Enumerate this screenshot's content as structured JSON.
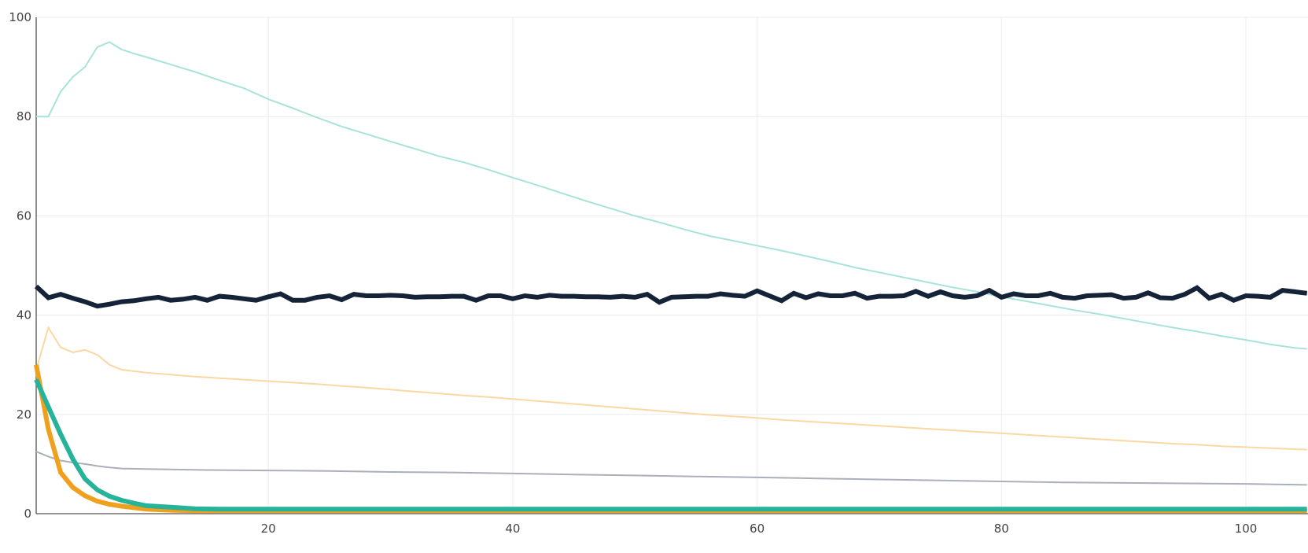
{
  "chart_data": {
    "type": "line",
    "title": "",
    "xlabel": "",
    "ylabel": "",
    "xlim": [
      1,
      105
    ],
    "ylim": [
      0,
      100
    ],
    "x_ticks": [
      20,
      40,
      60,
      80,
      100
    ],
    "y_ticks": [
      0,
      20,
      40,
      60,
      80,
      100
    ],
    "x_tick_labels": [
      "20",
      "40",
      "60",
      "80",
      "100"
    ],
    "y_tick_labels": [
      "0",
      "20",
      "40",
      "60",
      "80",
      "100"
    ],
    "grid": true,
    "legend": "none",
    "series": [
      {
        "color": "#a8e3da",
        "stroke": "thin",
        "points": [
          [
            1,
            80
          ],
          [
            2,
            80
          ],
          [
            3,
            85
          ],
          [
            4,
            88
          ],
          [
            5,
            90
          ],
          [
            6,
            94
          ],
          [
            7,
            95
          ],
          [
            8,
            93.5
          ],
          [
            9,
            92.7
          ],
          [
            10,
            92
          ],
          [
            12,
            90.5
          ],
          [
            14,
            89
          ],
          [
            16,
            87.3
          ],
          [
            18,
            85.7
          ],
          [
            20,
            83.5
          ],
          [
            22,
            81.7
          ],
          [
            24,
            79.8
          ],
          [
            26,
            78
          ],
          [
            28,
            76.5
          ],
          [
            30,
            75
          ],
          [
            32,
            73.5
          ],
          [
            34,
            72
          ],
          [
            36,
            70.8
          ],
          [
            38,
            69.3
          ],
          [
            40,
            67.7
          ],
          [
            42,
            66.2
          ],
          [
            44,
            64.6
          ],
          [
            46,
            63
          ],
          [
            48,
            61.5
          ],
          [
            50,
            60
          ],
          [
            52,
            58.7
          ],
          [
            54,
            57.3
          ],
          [
            56,
            56
          ],
          [
            58,
            55
          ],
          [
            60,
            54
          ],
          [
            62,
            53
          ],
          [
            64,
            51.9
          ],
          [
            66,
            50.8
          ],
          [
            68,
            49.6
          ],
          [
            70,
            48.6
          ],
          [
            72,
            47.6
          ],
          [
            74,
            46.6
          ],
          [
            76,
            45.6
          ],
          [
            78,
            44.7
          ],
          [
            80,
            43.7
          ],
          [
            82,
            42.8
          ],
          [
            84,
            41.9
          ],
          [
            86,
            41
          ],
          [
            88,
            40.2
          ],
          [
            90,
            39.3
          ],
          [
            92,
            38.4
          ],
          [
            94,
            37.5
          ],
          [
            96,
            36.7
          ],
          [
            98,
            35.8
          ],
          [
            100,
            35
          ],
          [
            102,
            34.1
          ],
          [
            104,
            33.4
          ],
          [
            105,
            33.2
          ]
        ]
      },
      {
        "color": "#fbd8a3",
        "stroke": "thin",
        "points": [
          [
            1,
            29
          ],
          [
            2,
            37.5
          ],
          [
            3,
            33.5
          ],
          [
            4,
            32.5
          ],
          [
            5,
            33
          ],
          [
            6,
            32
          ],
          [
            7,
            30
          ],
          [
            8,
            29
          ],
          [
            9,
            28.7
          ],
          [
            10,
            28.4
          ],
          [
            12,
            28
          ],
          [
            14,
            27.6
          ],
          [
            16,
            27.3
          ],
          [
            18,
            27
          ],
          [
            20,
            26.7
          ],
          [
            22,
            26.4
          ],
          [
            24,
            26.1
          ],
          [
            26,
            25.7
          ],
          [
            28,
            25.4
          ],
          [
            30,
            25
          ],
          [
            32,
            24.6
          ],
          [
            34,
            24.2
          ],
          [
            36,
            23.8
          ],
          [
            38,
            23.5
          ],
          [
            40,
            23.1
          ],
          [
            42,
            22.7
          ],
          [
            44,
            22.3
          ],
          [
            46,
            21.9
          ],
          [
            48,
            21.5
          ],
          [
            50,
            21.1
          ],
          [
            52,
            20.7
          ],
          [
            54,
            20.3
          ],
          [
            56,
            19.9
          ],
          [
            58,
            19.6
          ],
          [
            60,
            19.3
          ],
          [
            62,
            18.9
          ],
          [
            64,
            18.6
          ],
          [
            66,
            18.3
          ],
          [
            68,
            18
          ],
          [
            70,
            17.7
          ],
          [
            72,
            17.4
          ],
          [
            74,
            17.1
          ],
          [
            76,
            16.8
          ],
          [
            78,
            16.5
          ],
          [
            80,
            16.2
          ],
          [
            82,
            15.9
          ],
          [
            84,
            15.6
          ],
          [
            86,
            15.3
          ],
          [
            88,
            15
          ],
          [
            90,
            14.7
          ],
          [
            92,
            14.4
          ],
          [
            94,
            14.1
          ],
          [
            96,
            13.9
          ],
          [
            98,
            13.6
          ],
          [
            100,
            13.4
          ],
          [
            102,
            13.2
          ],
          [
            104,
            13
          ],
          [
            105,
            12.9
          ]
        ]
      },
      {
        "color": "#a9b0b8",
        "stroke": "thin",
        "points": [
          [
            1,
            12.5
          ],
          [
            2,
            11.5
          ],
          [
            3,
            10.7
          ],
          [
            4,
            10.3
          ],
          [
            5,
            10
          ],
          [
            6,
            9.6
          ],
          [
            7,
            9.3
          ],
          [
            8,
            9.1
          ],
          [
            10,
            9
          ],
          [
            15,
            8.8
          ],
          [
            20,
            8.7
          ],
          [
            25,
            8.6
          ],
          [
            30,
            8.4
          ],
          [
            35,
            8.3
          ],
          [
            40,
            8.1
          ],
          [
            45,
            7.9
          ],
          [
            50,
            7.7
          ],
          [
            55,
            7.5
          ],
          [
            60,
            7.3
          ],
          [
            65,
            7.1
          ],
          [
            70,
            6.9
          ],
          [
            75,
            6.7
          ],
          [
            80,
            6.5
          ],
          [
            85,
            6.3
          ],
          [
            90,
            6.2
          ],
          [
            95,
            6.1
          ],
          [
            100,
            6
          ],
          [
            105,
            5.8
          ]
        ]
      },
      {
        "color": "#142338",
        "stroke": "thick",
        "points": [
          [
            1,
            45.8
          ],
          [
            2,
            43.5
          ],
          [
            3,
            44.2
          ],
          [
            4,
            43.4
          ],
          [
            5,
            42.7
          ],
          [
            6,
            41.8
          ],
          [
            7,
            42.2
          ],
          [
            8,
            42.7
          ],
          [
            9,
            42.9
          ],
          [
            10,
            43.3
          ],
          [
            11,
            43.6
          ],
          [
            12,
            43
          ],
          [
            13,
            43.2
          ],
          [
            14,
            43.6
          ],
          [
            15,
            43
          ],
          [
            16,
            43.8
          ],
          [
            17,
            43.6
          ],
          [
            18,
            43.3
          ],
          [
            19,
            43
          ],
          [
            20,
            43.7
          ],
          [
            21,
            44.3
          ],
          [
            22,
            43
          ],
          [
            23,
            43
          ],
          [
            24,
            43.6
          ],
          [
            25,
            43.9
          ],
          [
            26,
            43.1
          ],
          [
            27,
            44.2
          ],
          [
            28,
            43.9
          ],
          [
            29,
            43.9
          ],
          [
            30,
            44
          ],
          [
            31,
            43.9
          ],
          [
            32,
            43.6
          ],
          [
            33,
            43.7
          ],
          [
            34,
            43.7
          ],
          [
            35,
            43.8
          ],
          [
            36,
            43.8
          ],
          [
            37,
            43
          ],
          [
            38,
            43.9
          ],
          [
            39,
            43.9
          ],
          [
            40,
            43.3
          ],
          [
            41,
            43.9
          ],
          [
            42,
            43.6
          ],
          [
            43,
            44
          ],
          [
            44,
            43.8
          ],
          [
            45,
            43.8
          ],
          [
            46,
            43.7
          ],
          [
            47,
            43.7
          ],
          [
            48,
            43.6
          ],
          [
            49,
            43.8
          ],
          [
            50,
            43.6
          ],
          [
            51,
            44.2
          ],
          [
            52,
            42.6
          ],
          [
            53,
            43.6
          ],
          [
            54,
            43.7
          ],
          [
            55,
            43.8
          ],
          [
            56,
            43.8
          ],
          [
            57,
            44.3
          ],
          [
            58,
            44
          ],
          [
            59,
            43.8
          ],
          [
            60,
            44.9
          ],
          [
            61,
            43.9
          ],
          [
            62,
            42.9
          ],
          [
            63,
            44.4
          ],
          [
            64,
            43.5
          ],
          [
            65,
            44.3
          ],
          [
            66,
            43.9
          ],
          [
            67,
            43.9
          ],
          [
            68,
            44.4
          ],
          [
            69,
            43.4
          ],
          [
            70,
            43.8
          ],
          [
            71,
            43.8
          ],
          [
            72,
            43.9
          ],
          [
            73,
            44.8
          ],
          [
            74,
            43.8
          ],
          [
            75,
            44.7
          ],
          [
            76,
            43.9
          ],
          [
            77,
            43.6
          ],
          [
            78,
            43.9
          ],
          [
            79,
            45
          ],
          [
            80,
            43.6
          ],
          [
            81,
            44.3
          ],
          [
            82,
            43.9
          ],
          [
            83,
            43.9
          ],
          [
            84,
            44.4
          ],
          [
            85,
            43.6
          ],
          [
            86,
            43.4
          ],
          [
            87,
            43.9
          ],
          [
            88,
            44
          ],
          [
            89,
            44.1
          ],
          [
            90,
            43.4
          ],
          [
            91,
            43.6
          ],
          [
            92,
            44.5
          ],
          [
            93,
            43.5
          ],
          [
            94,
            43.4
          ],
          [
            95,
            44.2
          ],
          [
            96,
            45.5
          ],
          [
            97,
            43.4
          ],
          [
            98,
            44.2
          ],
          [
            99,
            43
          ],
          [
            100,
            43.9
          ],
          [
            101,
            43.8
          ],
          [
            102,
            43.6
          ],
          [
            103,
            45
          ],
          [
            104,
            44.7
          ],
          [
            105,
            44.4
          ]
        ]
      },
      {
        "color": "#f0a01c",
        "stroke": "thick",
        "points": [
          [
            1,
            30
          ],
          [
            2,
            17
          ],
          [
            3,
            8.3
          ],
          [
            4,
            5.3
          ],
          [
            5,
            3.6
          ],
          [
            6,
            2.5
          ],
          [
            7,
            1.9
          ],
          [
            8,
            1.5
          ],
          [
            9,
            1.2
          ],
          [
            10,
            0.9
          ],
          [
            12,
            0.7
          ],
          [
            14,
            0.6
          ],
          [
            16,
            0.6
          ],
          [
            20,
            0.6
          ],
          [
            30,
            0.6
          ],
          [
            40,
            0.6
          ],
          [
            50,
            0.6
          ],
          [
            60,
            0.6
          ],
          [
            70,
            0.6
          ],
          [
            80,
            0.6
          ],
          [
            90,
            0.6
          ],
          [
            100,
            0.6
          ],
          [
            105,
            0.6
          ]
        ]
      },
      {
        "color": "#26b39a",
        "stroke": "thick",
        "points": [
          [
            1,
            27
          ],
          [
            2,
            21.5
          ],
          [
            3,
            16
          ],
          [
            4,
            11
          ],
          [
            5,
            7
          ],
          [
            6,
            4.8
          ],
          [
            7,
            3.5
          ],
          [
            8,
            2.7
          ],
          [
            9,
            2.1
          ],
          [
            10,
            1.6
          ],
          [
            12,
            1.3
          ],
          [
            14,
            1
          ],
          [
            16,
            0.9
          ],
          [
            20,
            0.9
          ],
          [
            30,
            0.9
          ],
          [
            40,
            0.9
          ],
          [
            50,
            0.9
          ],
          [
            60,
            0.9
          ],
          [
            70,
            0.9
          ],
          [
            80,
            0.9
          ],
          [
            90,
            0.9
          ],
          [
            100,
            0.9
          ],
          [
            105,
            0.9
          ]
        ]
      }
    ]
  }
}
